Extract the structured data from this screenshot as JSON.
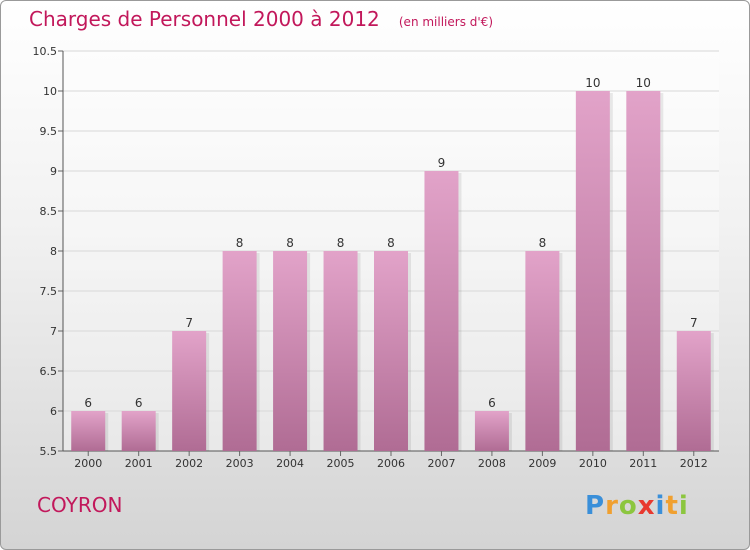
{
  "header": {
    "title": "Charges de Personnel 2000 à 2012",
    "subtitle": "(en milliers d'€)"
  },
  "footer": {
    "place": "COYRON",
    "logo_text": "Proxiti"
  },
  "colors": {
    "title": "#c2185b",
    "bar_top": "#e2a3c9",
    "bar_bottom": "#b06c94",
    "grid": "#d8d8d8"
  },
  "chart_data": {
    "type": "bar",
    "title": "Charges de Personnel 2000 à 2012",
    "subtitle": "(en milliers d'€)",
    "categories": [
      "2000",
      "2001",
      "2002",
      "2003",
      "2004",
      "2005",
      "2006",
      "2007",
      "2008",
      "2009",
      "2010",
      "2011",
      "2012"
    ],
    "values": [
      6,
      6,
      7,
      8,
      8,
      8,
      8,
      9,
      6,
      8,
      10,
      10,
      7
    ],
    "data_labels": [
      "6",
      "6",
      "7",
      "8",
      "8",
      "8",
      "8",
      "9",
      "6",
      "8",
      "10",
      "10",
      "7"
    ],
    "ylim": [
      5.5,
      10.5
    ],
    "yticks": [
      "5.5",
      "6",
      "6.5",
      "7",
      "7.5",
      "8",
      "8.5",
      "9",
      "9.5",
      "10",
      "10.5"
    ],
    "grid": true,
    "legend": "none"
  }
}
